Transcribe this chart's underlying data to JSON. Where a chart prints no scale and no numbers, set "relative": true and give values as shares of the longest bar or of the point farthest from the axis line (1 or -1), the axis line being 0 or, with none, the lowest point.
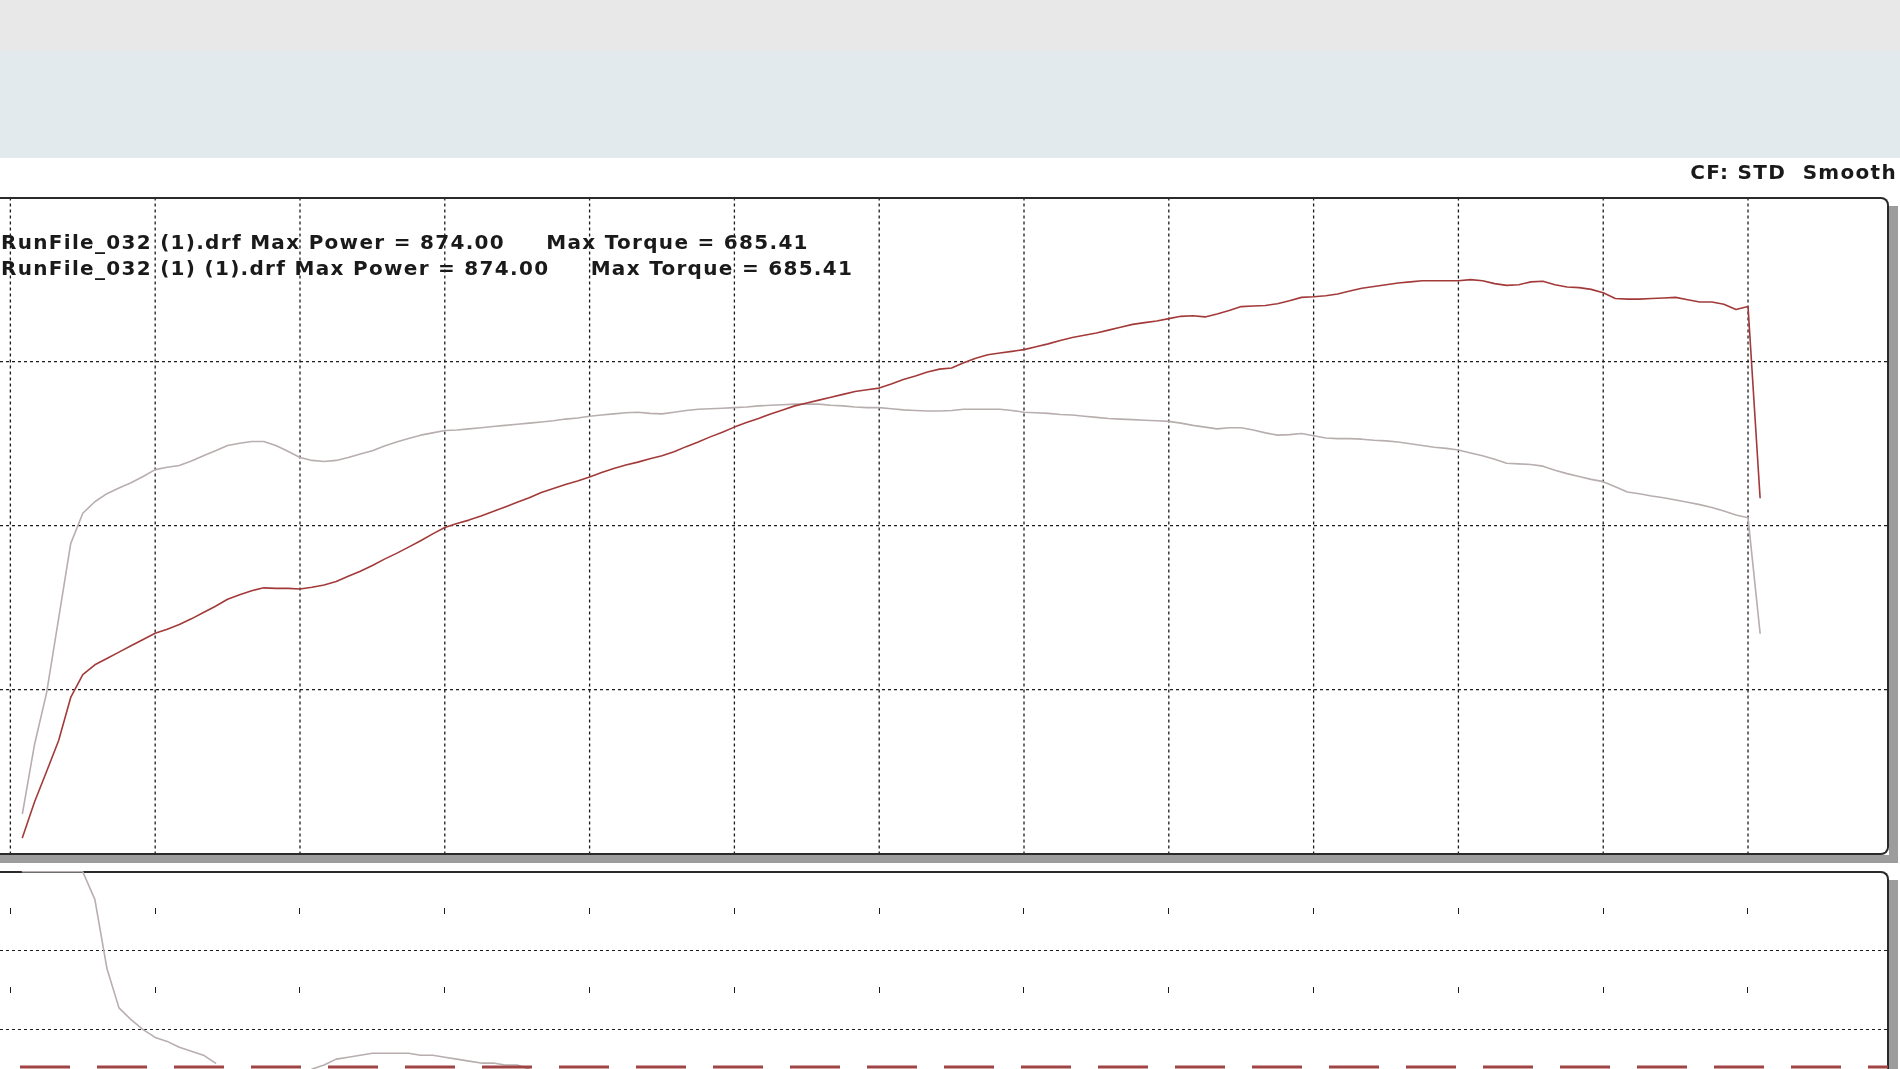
{
  "chart_data": [
    {
      "type": "line",
      "relative": true,
      "grid": true,
      "marker": "none",
      "line_style": "solid",
      "categories": [
        null,
        null,
        null,
        null,
        null,
        null,
        null,
        null,
        null,
        null,
        null,
        null,
        null,
        null,
        null,
        null,
        null,
        null,
        null,
        null,
        null,
        null,
        null,
        null,
        null,
        null,
        null,
        null,
        null,
        null,
        null,
        null,
        null,
        null,
        null,
        null,
        null,
        null,
        null,
        null,
        null,
        null,
        null,
        null,
        null,
        null,
        null,
        null,
        null,
        null,
        null,
        null,
        null,
        null,
        null,
        null,
        null,
        null,
        null,
        null,
        null,
        null,
        null,
        null,
        null,
        null,
        null,
        null,
        null,
        null,
        null,
        null,
        null,
        null,
        null,
        null,
        null,
        null,
        null,
        null,
        null,
        null,
        null,
        null,
        null,
        null,
        null,
        null,
        null,
        null,
        null,
        null,
        null,
        null,
        null,
        null,
        null,
        null,
        null,
        null,
        null,
        null,
        null,
        null,
        null,
        null,
        null,
        null,
        null,
        null,
        null,
        null,
        null,
        null,
        null,
        null,
        null,
        null,
        null,
        null,
        null,
        null,
        null,
        null,
        null,
        null,
        null,
        null,
        null,
        null,
        null,
        null,
        null,
        null,
        null,
        null,
        null,
        null,
        null,
        null,
        null,
        null,
        null,
        null,
        null
      ],
      "series": [
        {
          "color": "#a33a3a",
          "values": [
            0.028,
            0.09,
            0.143,
            0.197,
            0.272,
            0.312,
            0.329,
            0.34,
            0.351,
            0.362,
            0.373,
            0.384,
            0.391,
            0.399,
            0.409,
            0.42,
            0.431,
            0.443,
            0.451,
            0.458,
            0.463,
            0.462,
            0.462,
            0.461,
            0.464,
            0.468,
            0.474,
            0.483,
            0.492,
            0.502,
            0.513,
            0.523,
            0.534,
            0.545,
            0.557,
            0.568,
            0.575,
            0.581,
            0.588,
            0.596,
            0.604,
            0.612,
            0.62,
            0.629,
            0.636,
            0.643,
            0.649,
            0.656,
            0.664,
            0.671,
            0.677,
            0.682,
            0.688,
            0.693,
            0.7,
            0.709,
            0.717,
            0.726,
            0.734,
            0.743,
            0.751,
            0.758,
            0.766,
            0.773,
            0.78,
            0.785,
            0.79,
            0.795,
            0.8,
            0.805,
            0.808,
            0.811,
            0.818,
            0.826,
            0.832,
            0.839,
            0.844,
            0.846,
            0.855,
            0.863,
            0.869,
            0.872,
            0.875,
            0.878,
            0.883,
            0.888,
            0.894,
            0.899,
            0.903,
            0.907,
            0.912,
            0.917,
            0.922,
            0.925,
            0.928,
            0.932,
            0.936,
            0.937,
            0.935,
            0.94,
            0.946,
            0.953,
            0.954,
            0.955,
            0.958,
            0.963,
            0.969,
            0.97,
            0.972,
            0.975,
            0.98,
            0.985,
            0.988,
            0.991,
            0.994,
            0.996,
            0.998,
            0.998,
            0.998,
            0.998,
            1.0,
            0.998,
            0.993,
            0.99,
            0.991,
            0.996,
            0.997,
            0.991,
            0.987,
            0.986,
            0.983,
            0.977,
            0.967,
            0.966,
            0.966,
            0.967,
            0.968,
            0.969,
            0.965,
            0.961,
            0.961,
            0.957,
            0.948,
            0.953,
            0.62
          ]
        },
        {
          "color": "#b8aeae",
          "values": [
            0.07,
            0.19,
            0.28,
            0.41,
            0.54,
            0.593,
            0.613,
            0.627,
            0.637,
            0.646,
            0.657,
            0.669,
            0.673,
            0.676,
            0.684,
            0.693,
            0.702,
            0.711,
            0.715,
            0.718,
            0.718,
            0.711,
            0.701,
            0.69,
            0.685,
            0.683,
            0.685,
            0.69,
            0.696,
            0.702,
            0.71,
            0.717,
            0.723,
            0.729,
            0.733,
            0.737,
            0.738,
            0.74,
            0.742,
            0.744,
            0.746,
            0.748,
            0.75,
            0.752,
            0.754,
            0.757,
            0.759,
            0.762,
            0.764,
            0.766,
            0.768,
            0.769,
            0.767,
            0.766,
            0.769,
            0.772,
            0.774,
            0.775,
            0.776,
            0.777,
            0.778,
            0.78,
            0.781,
            0.782,
            0.783,
            0.783,
            0.783,
            0.781,
            0.78,
            0.778,
            0.777,
            0.777,
            0.775,
            0.773,
            0.772,
            0.771,
            0.771,
            0.772,
            0.774,
            0.774,
            0.774,
            0.774,
            0.772,
            0.769,
            0.768,
            0.767,
            0.765,
            0.764,
            0.762,
            0.76,
            0.758,
            0.757,
            0.756,
            0.755,
            0.754,
            0.753,
            0.75,
            0.746,
            0.743,
            0.74,
            0.742,
            0.742,
            0.738,
            0.733,
            0.729,
            0.73,
            0.732,
            0.728,
            0.724,
            0.723,
            0.723,
            0.722,
            0.72,
            0.719,
            0.717,
            0.714,
            0.711,
            0.708,
            0.706,
            0.703,
            0.698,
            0.693,
            0.687,
            0.68,
            0.679,
            0.678,
            0.675,
            0.668,
            0.662,
            0.657,
            0.652,
            0.648,
            0.639,
            0.63,
            0.627,
            0.623,
            0.62,
            0.616,
            0.612,
            0.608,
            0.603,
            0.597,
            0.59,
            0.585,
            0.384
          ]
        }
      ],
      "annotations": [
        "RunFile_032 (1).drf Max Power = 874.00     Max Torque = 685.41",
        "RunFile_032 (1) (1).drf Max Power = 874.00     Max Torque = 685.41",
        "CF: STD  Smooth"
      ]
    },
    {
      "type": "line",
      "relative": true,
      "grid": true,
      "marker": "none",
      "categories": [
        null,
        null,
        null,
        null,
        null,
        null,
        null,
        null,
        null,
        null,
        null,
        null,
        null,
        null,
        null,
        null,
        null,
        null,
        null,
        null,
        null,
        null,
        null,
        null,
        null,
        null,
        null,
        null,
        null,
        null,
        null,
        null,
        null,
        null,
        null,
        null,
        null,
        null,
        null,
        null,
        null,
        null,
        null,
        null,
        null,
        null,
        null,
        null,
        null,
        null,
        null,
        null,
        null,
        null,
        null,
        null,
        null,
        null,
        null,
        null,
        null,
        null,
        null,
        null,
        null,
        null,
        null,
        null,
        null,
        null,
        null,
        null,
        null,
        null,
        null,
        null,
        null,
        null,
        null,
        null,
        null,
        null,
        null,
        null,
        null,
        null,
        null,
        null,
        null,
        null,
        null,
        null,
        null,
        null,
        null,
        null,
        null,
        null,
        null,
        null,
        null,
        null,
        null,
        null,
        null,
        null,
        null,
        null,
        null,
        null,
        null,
        null,
        null,
        null,
        null,
        null,
        null,
        null,
        null,
        null,
        null,
        null,
        null,
        null,
        null,
        null,
        null,
        null,
        null,
        null,
        null,
        null,
        null,
        null,
        null,
        null,
        null,
        null,
        null,
        null,
        null,
        null,
        null,
        null,
        null
      ],
      "series": [
        {
          "color": "#b8aeae",
          "values": [
            1,
            1,
            1,
            1,
            1,
            1,
            0.86,
            0.51,
            0.31,
            0.25,
            0.2,
            0.16,
            0.14,
            0.11,
            0.09,
            0.07,
            0.03,
            null,
            null,
            null,
            null,
            null,
            null,
            null,
            0,
            0.02,
            0.05,
            0.06,
            0.07,
            0.08,
            0.08,
            0.08,
            0.08,
            0.07,
            0.07,
            0.06,
            0.05,
            0.04,
            0.03,
            0.03,
            0.02,
            0.02,
            0,
            null,
            null,
            null,
            null,
            null,
            null,
            null,
            null,
            null,
            null,
            null,
            null,
            null,
            null,
            null,
            null,
            null,
            null,
            null,
            null,
            null,
            null,
            null,
            null,
            null,
            null,
            null,
            null,
            null,
            null,
            null,
            null,
            null,
            null,
            null,
            null,
            null,
            null,
            null,
            null,
            null,
            null,
            null,
            null,
            null,
            null,
            null,
            null,
            null,
            null,
            null,
            null,
            null,
            null,
            null,
            null,
            null,
            null,
            null,
            null,
            null,
            null,
            null,
            null,
            null,
            null,
            null,
            null,
            null,
            null,
            null,
            null,
            null,
            null,
            null,
            null,
            null,
            null,
            null,
            null,
            null,
            null,
            null,
            null,
            null,
            null,
            null,
            null,
            null,
            null,
            null,
            null,
            null,
            null,
            null,
            null,
            null,
            null,
            null,
            null,
            null,
            null
          ]
        }
      ],
      "ref_lines": [
        {
          "axis": "y",
          "value": 0.01,
          "color": "#a04545",
          "line_style": "dashed"
        }
      ]
    }
  ]
}
